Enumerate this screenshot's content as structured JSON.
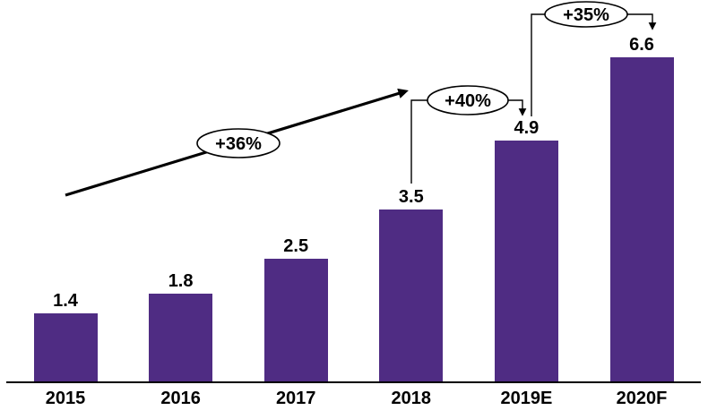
{
  "chart_data": {
    "type": "bar",
    "title": "",
    "xlabel": "",
    "ylabel": "",
    "categories": [
      "2015",
      "2016",
      "2017",
      "2018",
      "2019E",
      "2020F"
    ],
    "values": [
      1.4,
      1.8,
      2.5,
      3.5,
      4.9,
      6.6
    ],
    "value_labels": [
      "1.4",
      "1.8",
      "2.5",
      "3.5",
      "4.9",
      "6.6"
    ],
    "ylim": [
      0,
      7.0
    ],
    "grid": "off",
    "legend": "none",
    "bar_color": "#4F2C83",
    "axis_color": "#000000",
    "text_color": "#000000",
    "background_color": "#FFFFFF",
    "annotations": [
      {
        "label": "+36%",
        "type": "diagonal-trend-arrow",
        "from": "2015",
        "to": "2018"
      },
      {
        "label": "+40%",
        "type": "elbow-arrow",
        "from": "2018",
        "to": "2019E"
      },
      {
        "label": "+35%",
        "type": "elbow-arrow",
        "from": "2019E",
        "to": "2020F"
      }
    ]
  }
}
